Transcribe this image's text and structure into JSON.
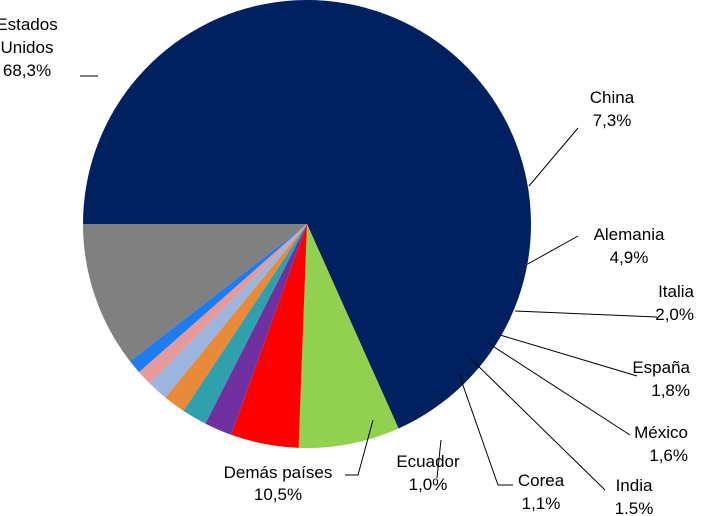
{
  "chart_data": {
    "type": "pie",
    "title": "",
    "slices": [
      {
        "name": "Estados Unidos",
        "label_lines": [
          "Estados",
          "Unidos"
        ],
        "value_label": "68,3%",
        "value": 68.3,
        "color": "#012060"
      },
      {
        "name": "China",
        "label_lines": [
          "China"
        ],
        "value_label": "7,3%",
        "value": 7.3,
        "color": "#92d050"
      },
      {
        "name": "Alemania",
        "label_lines": [
          "Alemania"
        ],
        "value_label": "4,9%",
        "value": 4.9,
        "color": "#ff0000"
      },
      {
        "name": "Italia",
        "label_lines": [
          "Italia"
        ],
        "value_label": "2,0%",
        "value": 2.0,
        "color": "#7030a0"
      },
      {
        "name": "España",
        "label_lines": [
          "España"
        ],
        "value_label": "1,8%",
        "value": 1.8,
        "color": "#31a0ad"
      },
      {
        "name": "México",
        "label_lines": [
          "México"
        ],
        "value_label": "1,6%",
        "value": 1.6,
        "color": "#e88a3a"
      },
      {
        "name": "India",
        "label_lines": [
          "India"
        ],
        "value_label": "1.5%",
        "value": 1.5,
        "color": "#9db4df"
      },
      {
        "name": "Corea",
        "label_lines": [
          "Corea"
        ],
        "value_label": "1,1%",
        "value": 1.1,
        "color": "#e49a9a"
      },
      {
        "name": "Ecuador",
        "label_lines": [
          "Ecuador"
        ],
        "value_label": "1,0%",
        "value": 1.0,
        "color": "#1f7cf0"
      },
      {
        "name": "Demás países",
        "label_lines": [
          "Demás países"
        ],
        "value_label": "10,5%",
        "value": 10.5,
        "color": "#808080"
      }
    ]
  }
}
